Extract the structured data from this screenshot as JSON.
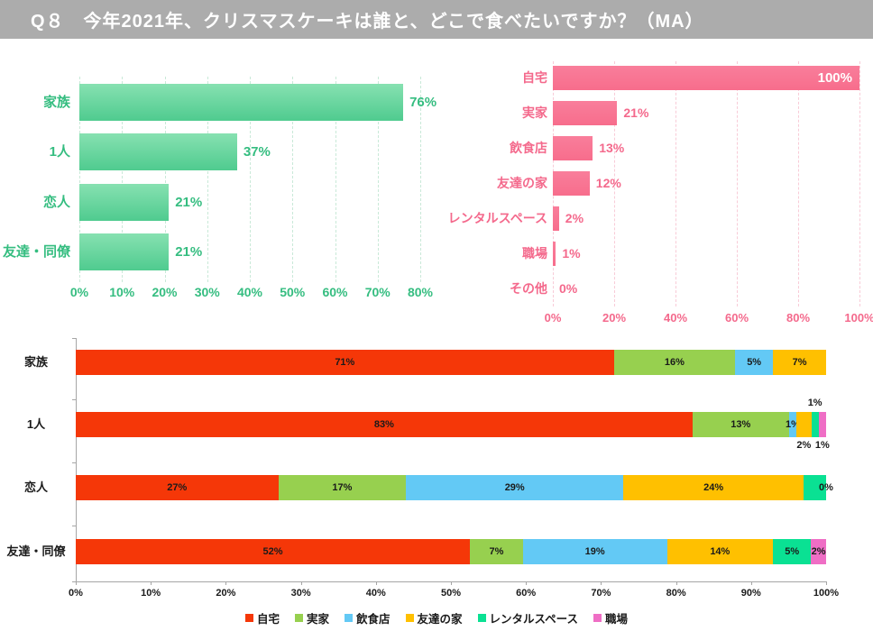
{
  "title": "Q８　今年2021年、クリスマスケーキは誰と、どこで食べたいですか？（MA）",
  "title_bar_bg": "#ACACAC",
  "title_text_color": "#FFFFFF",
  "axis_color": "#A6A6A6",
  "chart_data": [
    {
      "id": "who",
      "type": "bar",
      "orientation": "horizontal",
      "categories": [
        "家族",
        "1人",
        "恋人",
        "友達・同僚"
      ],
      "values": [
        76,
        37,
        21,
        21
      ],
      "value_labels": [
        "76%",
        "37%",
        "21%",
        "21%"
      ],
      "xlim": [
        0,
        80
      ],
      "xticks": [
        "0%",
        "10%",
        "20%",
        "30%",
        "40%",
        "50%",
        "60%",
        "70%",
        "80%"
      ],
      "grid": "dashed",
      "bar_color_top": "#87E1B1",
      "bar_color_bottom": "#4FCB8F",
      "text_color": "#35BD80",
      "grid_color": "#C9E9D8"
    },
    {
      "id": "where",
      "type": "bar",
      "orientation": "horizontal",
      "categories": [
        "自宅",
        "実家",
        "飲食店",
        "友達の家",
        "レンタルスペース",
        "職場",
        "その他"
      ],
      "values": [
        100,
        21,
        13,
        12,
        2,
        1,
        0
      ],
      "value_labels": [
        "100%",
        "21%",
        "13%",
        "12%",
        "2%",
        "1%",
        "0%"
      ],
      "value_label_pos": [
        "inside",
        "outside",
        "outside",
        "outside",
        "outside",
        "outside",
        "outside"
      ],
      "xlim": [
        0,
        100
      ],
      "xticks": [
        "0%",
        "20%",
        "40%",
        "60%",
        "80%",
        "100%"
      ],
      "grid": "dashed",
      "bar_color_top": "#F97E9B",
      "bar_color_bottom": "#F76D8C",
      "text_color": "#F4698C",
      "inside_label_color": "#FFFFFF",
      "grid_color": "#F8CBD7"
    },
    {
      "id": "who-where",
      "type": "stacked-bar",
      "orientation": "horizontal",
      "series_names": [
        "自宅",
        "実家",
        "飲食店",
        "友達の家",
        "レンタルスペース",
        "職場"
      ],
      "series_colors": {
        "自宅": "#F53708",
        "実家": "#97D04F",
        "飲食店": "#63C9F5",
        "友達の家": "#FFC000",
        "レンタルスペース": "#0AE193",
        "職場": "#EF6EC5"
      },
      "categories": [
        "家族",
        "1人",
        "恋人",
        "友達・同僚"
      ],
      "rows": [
        {
          "category": "家族",
          "segments": [
            {
              "series": "自宅",
              "value": 71,
              "label": "71%",
              "label_pos": "inside"
            },
            {
              "series": "実家",
              "value": 16,
              "label": "16%",
              "label_pos": "inside"
            },
            {
              "series": "飲食店",
              "value": 5,
              "label": "5%",
              "label_pos": "inside"
            },
            {
              "series": "友達の家",
              "value": 7,
              "label": "7%",
              "label_pos": "inside"
            }
          ]
        },
        {
          "category": "1人",
          "segments": [
            {
              "series": "自宅",
              "value": 83,
              "label": "83%",
              "label_pos": "inside"
            },
            {
              "series": "実家",
              "value": 13,
              "label": "13%",
              "label_pos": "inside"
            },
            {
              "series": "飲食店",
              "value": 1,
              "label": "1%",
              "label_pos": "inside"
            },
            {
              "series": "友達の家",
              "value": 2,
              "label": "2%",
              "label_pos": "below"
            },
            {
              "series": "レンタルスペース",
              "value": 1,
              "label": "1%",
              "label_pos": "above"
            },
            {
              "series": "職場",
              "value": 1,
              "label": "1%",
              "label_pos": "below"
            }
          ]
        },
        {
          "category": "恋人",
          "segments": [
            {
              "series": "自宅",
              "value": 27,
              "label": "27%",
              "label_pos": "inside"
            },
            {
              "series": "実家",
              "value": 17,
              "label": "17%",
              "label_pos": "inside"
            },
            {
              "series": "飲食店",
              "value": 29,
              "label": "29%",
              "label_pos": "inside"
            },
            {
              "series": "友達の家",
              "value": 24,
              "label": "24%",
              "label_pos": "inside"
            },
            {
              "series": "レンタルスペース",
              "value": 3,
              "label": "",
              "label_pos": "none"
            },
            {
              "series": "職場",
              "value": 0,
              "label": "0%",
              "label_pos": "inside"
            }
          ]
        },
        {
          "category": "友達・同僚",
          "segments": [
            {
              "series": "自宅",
              "value": 52,
              "label": "52%",
              "label_pos": "inside"
            },
            {
              "series": "実家",
              "value": 7,
              "label": "7%",
              "label_pos": "inside"
            },
            {
              "series": "飲食店",
              "value": 19,
              "label": "19%",
              "label_pos": "inside"
            },
            {
              "series": "友達の家",
              "value": 14,
              "label": "14%",
              "label_pos": "inside"
            },
            {
              "series": "レンタルスペース",
              "value": 5,
              "label": "5%",
              "label_pos": "inside"
            },
            {
              "series": "職場",
              "value": 2,
              "label": "2%",
              "label_pos": "inside"
            }
          ]
        }
      ],
      "xlim": [
        0,
        100
      ],
      "xticks": [
        "0%",
        "10%",
        "20%",
        "30%",
        "40%",
        "50%",
        "60%",
        "70%",
        "80%",
        "90%",
        "100%"
      ],
      "grid": "off",
      "legend_position": "bottom-center",
      "legend": [
        "自宅",
        "実家",
        "飲食店",
        "友達の家",
        "レンタルスペース",
        "職場"
      ],
      "label_color": "#1A1A1A"
    }
  ]
}
